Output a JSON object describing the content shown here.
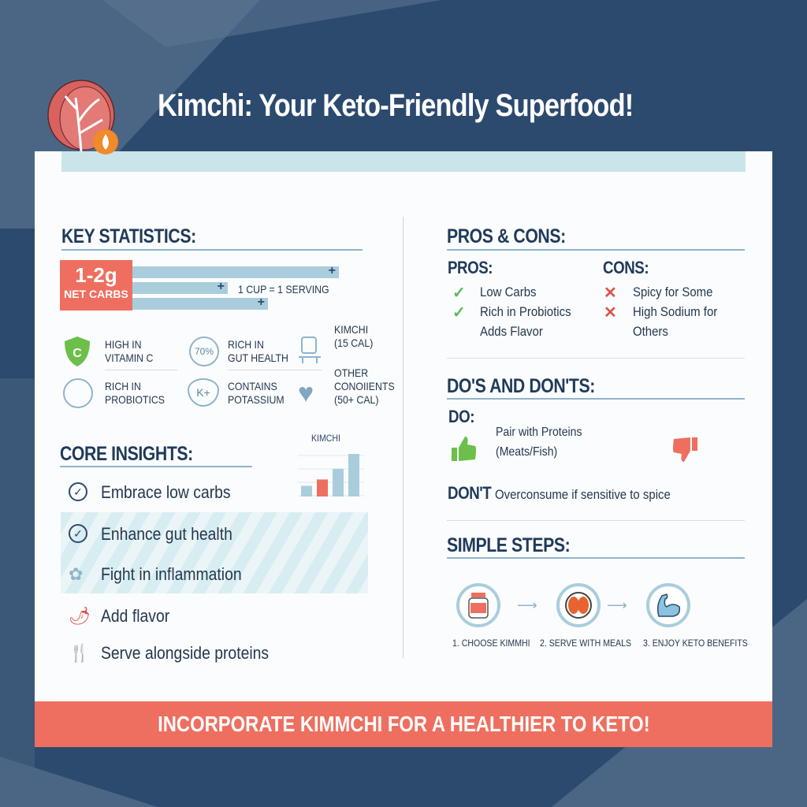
{
  "colors": {
    "navy": "#2c4a6e",
    "coral": "#ee6f5f",
    "light_blue": "#a9cddd",
    "green": "#5cb85c",
    "red": "#e0524a"
  },
  "header": {
    "title": "Kimchi: Your Keto-Friendly Superfood!",
    "logo_icon": "cabbage-flame-icon"
  },
  "key_statistics": {
    "heading": "KEY STATISTICS:",
    "highlight_value": "1-2g",
    "highlight_label": "NET CARBS",
    "serving": "1 CUP = 1 SERVING",
    "stats": [
      {
        "icon": "vitamin-c-shield-icon",
        "text": "HIGH IN\nVITAMIN C"
      },
      {
        "icon": "percent-70-icon",
        "badge": "70%",
        "text": "RICH IN\nGUT HEALTH"
      },
      {
        "icon": "scale-icon",
        "text": "KIMCHI\n(15 CAL)"
      },
      {
        "icon": "probiotics-icon",
        "text": "RICH IN\nPROBIOTICS"
      },
      {
        "icon": "potassium-heart-icon",
        "badge": "K+",
        "text": "CONTAINS\nPOTASSIUM"
      },
      {
        "icon": "heart-icon",
        "text": "OTHER\nCONOIIENTS\n(50+ CAL)"
      }
    ]
  },
  "core_insights": {
    "heading": "CORE INSIGHTS:",
    "chart_label": "KIMCHI",
    "chart_values": [
      25,
      40,
      65,
      100
    ],
    "items": [
      {
        "icon": "check-circle-icon",
        "text": "Embrace low carbs"
      },
      {
        "icon": "check-circle-icon",
        "text": "Enhance gut health"
      },
      {
        "icon": "ginger-icon",
        "text": "Fight in inflammation"
      },
      {
        "icon": "chili-pepper-icon",
        "text": "Add flavor"
      },
      {
        "icon": "fork-knife-icon",
        "text": "Serve alongside proteins"
      }
    ]
  },
  "pros_cons": {
    "heading": "PROS & CONS:",
    "pros_label": "PROS:",
    "cons_label": "CONS:",
    "pros": [
      "Low Carbs",
      "Rich in Probiotics",
      "Adds Flavor"
    ],
    "cons": [
      "Spicy for Some",
      "High Sodium for",
      "Others"
    ]
  },
  "dos_donts": {
    "heading": "DO'S AND DON'TS:",
    "do_label": "DO:",
    "do_text_1": "Pair with Proteins",
    "do_text_2": "(Meats/Fish)",
    "dont_label": "DON'T",
    "dont_text": "Overconsume if sensitive to spice"
  },
  "steps": {
    "heading": "SIMPLE STEPS:",
    "items": [
      {
        "icon": "jar-icon",
        "label": "1. CHOOSE KIMMHI"
      },
      {
        "icon": "plate-icon",
        "label": "2. SERVE WITH MEALS"
      },
      {
        "icon": "muscle-icon",
        "label": "3. ENJOY KETO BENEFITS"
      }
    ]
  },
  "banner": {
    "text": "INCORPORATE KIMMCHI FOR A HEALTHIER TO KETO!"
  }
}
